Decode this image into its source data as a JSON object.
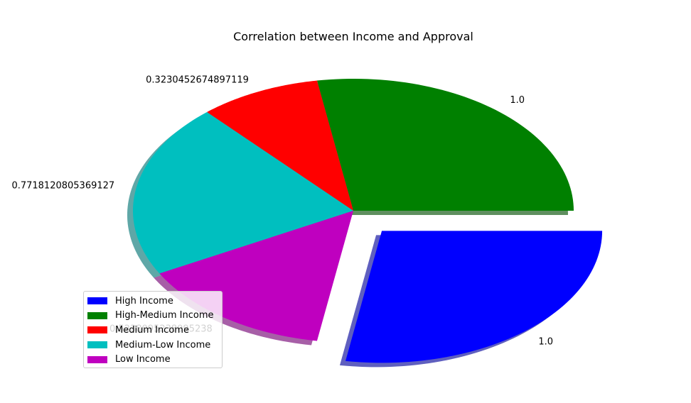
{
  "chart_data": {
    "type": "pie",
    "title": "Correlation between Income and Approval",
    "slices": [
      {
        "name": "High Income",
        "value": 1.0,
        "label": "1.0",
        "color": "#0000ff",
        "explode": true
      },
      {
        "name": "High-Medium Income",
        "value": 1.0,
        "label": "1.0",
        "color": "#008000",
        "explode": false
      },
      {
        "name": "Medium Income",
        "value": 0.3230452674897119,
        "label": "0.3230452674897119",
        "color": "#ff0000",
        "explode": false
      },
      {
        "name": "Medium-Low Income",
        "value": 0.7718120805369127,
        "label": "0.7718120805369127",
        "color": "#00bfbf",
        "explode": false
      },
      {
        "name": "Low Income",
        "value": 0.5238095238095238,
        "label": "0.5238095238095238",
        "color": "#bf00bf",
        "explode": false
      }
    ],
    "shadow": true,
    "legend_position": "lower-left"
  }
}
